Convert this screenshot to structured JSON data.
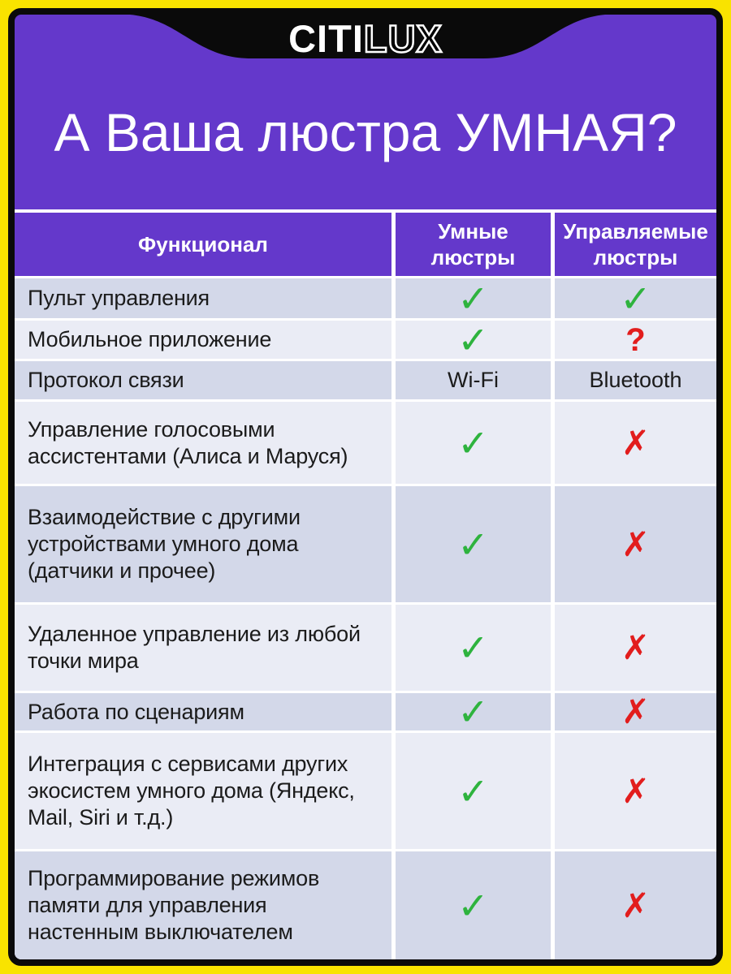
{
  "brand": {
    "logo_text_solid": "CITI",
    "logo_text_outline": "LUX"
  },
  "header": {
    "title": "А Ваша люстра УМНАЯ?"
  },
  "table": {
    "headers": [
      {
        "line1": "Функционал",
        "line2": ""
      },
      {
        "line1": "Умные",
        "line2": "люстры"
      },
      {
        "line1": "Управляемые",
        "line2": "люстры"
      }
    ],
    "rows": [
      {
        "feature": "Пульт управления",
        "smart": "check",
        "controlled": "check"
      },
      {
        "feature": "Мобильное приложение",
        "smart": "check",
        "controlled": "question"
      },
      {
        "feature": "Протокол связи",
        "smart": "Wi-Fi",
        "controlled": "Bluetooth"
      },
      {
        "feature": "Управление голосовыми ассистентами (Алиса и Маруся)",
        "smart": "check",
        "controlled": "cross"
      },
      {
        "feature": "Взаимодействие с другими устройствами умного дома (датчики и прочее)",
        "smart": "check",
        "controlled": "cross"
      },
      {
        "feature": "Удаленное управление из любой точки мира",
        "smart": "check",
        "controlled": "cross"
      },
      {
        "feature": "Работа по сценариям",
        "smart": "check",
        "controlled": "cross"
      },
      {
        "feature": "Интеграция с сервисами других экосистем умного дома (Яндекс, Mail, Siri и т.д.)",
        "smart": "check",
        "controlled": "cross"
      },
      {
        "feature": "Программирование режимов памяти для управления настенным выключателем",
        "smart": "check",
        "controlled": "cross"
      }
    ]
  },
  "icons": {
    "check": "✓",
    "cross": "✗",
    "question": "?"
  },
  "colors": {
    "background_purple": "#6438CB",
    "border_yellow": "#F9E300",
    "frame_black": "#0A0A0A",
    "row_dark": "#D3D8E9",
    "row_light": "#EAECF5",
    "check_green": "#2EB33E",
    "cross_red": "#E21D1D",
    "text_dark": "#1B1B1B"
  }
}
